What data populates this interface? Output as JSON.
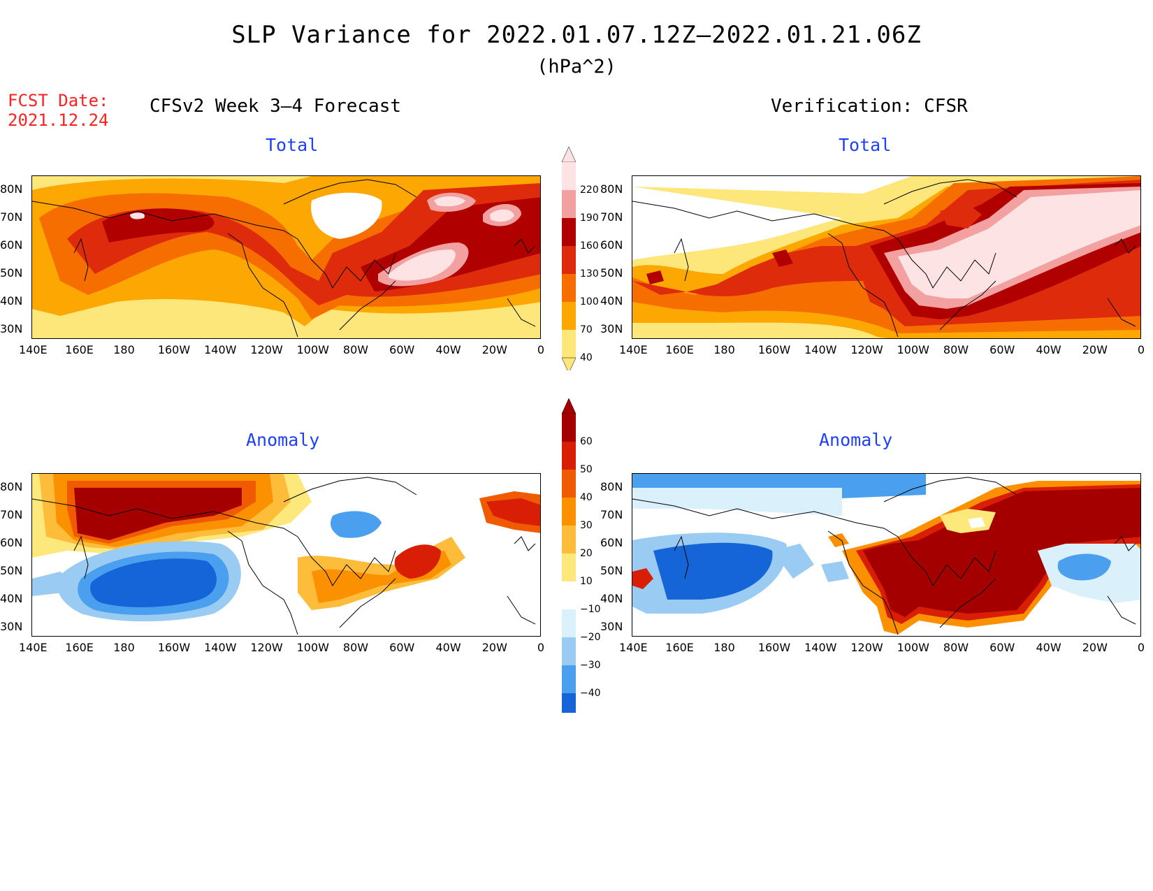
{
  "title": "SLP Variance for 2022.01.07.12Z–2022.01.21.06Z",
  "subtitle": "(hPa^2)",
  "fcst_date_label": "FCST Date:",
  "fcst_date_value": "2021.12.24",
  "left_header": "CFSv2 Week 3–4 Forecast",
  "right_header": "Verification: CFSR",
  "panels": {
    "fc_total": {
      "label": "Total"
    },
    "ver_total": {
      "label": "Total"
    },
    "fc_anom": {
      "label": "Anomaly"
    },
    "ver_anom": {
      "label": "Anomaly"
    }
  },
  "lat_labels": [
    "80N",
    "70N",
    "60N",
    "50N",
    "40N",
    "30N"
  ],
  "lon_labels": [
    "140E",
    "160E",
    "180",
    "160W",
    "140W",
    "120W",
    "100W",
    "80W",
    "60W",
    "40W",
    "20W",
    "0"
  ],
  "colorbar_total": {
    "levels": [
      "220",
      "190",
      "160",
      "130",
      "100",
      "70",
      "40"
    ],
    "colors": [
      "#fde3e3",
      "#f2a0a0",
      "#b10000",
      "#de2b0b",
      "#f76e00",
      "#fca702",
      "#fde67a"
    ]
  },
  "colorbar_anom": {
    "levels": [
      "60",
      "50",
      "40",
      "30",
      "20",
      "10",
      "−10",
      "−20",
      "−30",
      "−40"
    ],
    "colors": [
      "#a50000",
      "#d81e05",
      "#f05a00",
      "#fb9000",
      "#fdbd3a",
      "#fde87b",
      "#ffffff",
      "#daf0fb",
      "#9acbf3",
      "#4aa0ee",
      "#1565d8"
    ]
  },
  "colors": {
    "title_red": "#ff2020",
    "panel_label_blue": "#1f3fff"
  }
}
